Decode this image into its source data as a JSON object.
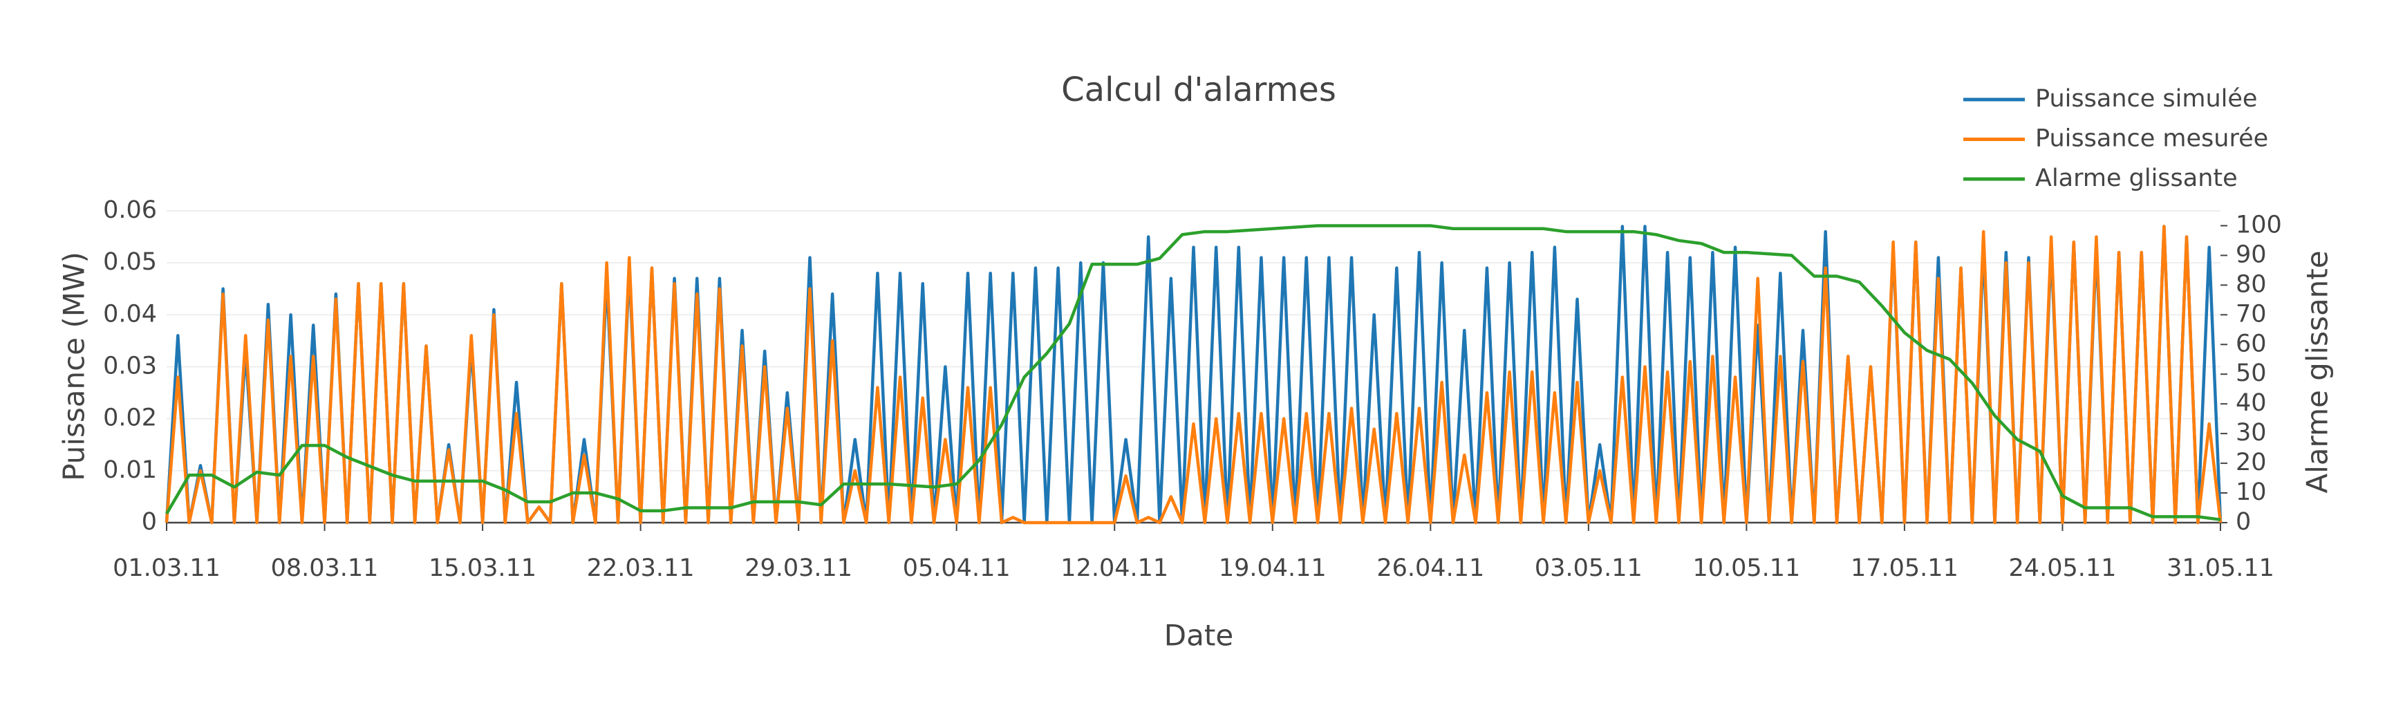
{
  "chart_data": {
    "type": "line",
    "title": "Calcul d'alarmes",
    "xlabel": "Date",
    "ylabel": "Puissance (MW)",
    "y2label": "Alarme glissante",
    "x": [
      0,
      0.5,
      1,
      1.5,
      2,
      2.5,
      3,
      3.5,
      4,
      4.5,
      5,
      5.5,
      6,
      6.5,
      7,
      7.5,
      8,
      8.5,
      9,
      9.5,
      10,
      10.5,
      11,
      11.5,
      12,
      12.5,
      13,
      13.5,
      14,
      14.5,
      15,
      15.5,
      16,
      16.5,
      17,
      17.5,
      18,
      18.5,
      19,
      19.5,
      20,
      20.5,
      21,
      21.5,
      22,
      22.5,
      23,
      23.5,
      24,
      24.5,
      25,
      25.5,
      26,
      26.5,
      27,
      27.5,
      28,
      28.5,
      29,
      29.5,
      30,
      30.5,
      31,
      31.5,
      32,
      32.5,
      33,
      33.5,
      34,
      34.5,
      35,
      35.5,
      36,
      36.5,
      37,
      37.5,
      38,
      38.5,
      39,
      39.5,
      40,
      40.5,
      41,
      41.5,
      42,
      42.5,
      43,
      43.5,
      44,
      44.5,
      45,
      45.5,
      46,
      46.5,
      47,
      47.5,
      48,
      48.5,
      49,
      49.5,
      50,
      50.5,
      51,
      51.5,
      52,
      52.5,
      53,
      53.5,
      54,
      54.5,
      55,
      55.5,
      56,
      56.5,
      57,
      57.5,
      58,
      58.5,
      59,
      59.5,
      60,
      60.5,
      61,
      61.5,
      62,
      62.5,
      63,
      63.5,
      64,
      64.5,
      65,
      65.5,
      66,
      66.5,
      67,
      67.5,
      68,
      68.5,
      69,
      69.5,
      70,
      70.5,
      71,
      71.5,
      72,
      72.5,
      73,
      73.5,
      74,
      74.5,
      75,
      75.5,
      76,
      76.5,
      77,
      77.5,
      78,
      78.5,
      79,
      79.5,
      80,
      80.5,
      81,
      81.5,
      82,
      82.5,
      83,
      83.5,
      84,
      84.5,
      85,
      85.5,
      86,
      86.5,
      87,
      87.5,
      88,
      88.5,
      89,
      89.5,
      90,
      90.5,
      91
    ],
    "xlim": [
      0,
      91
    ],
    "xticks": [
      {
        "value": 0,
        "label": "01.03.11"
      },
      {
        "value": 7,
        "label": "08.03.11"
      },
      {
        "value": 14,
        "label": "15.03.11"
      },
      {
        "value": 21,
        "label": "22.03.11"
      },
      {
        "value": 28,
        "label": "29.03.11"
      },
      {
        "value": 35,
        "label": "05.04.11"
      },
      {
        "value": 42,
        "label": "12.04.11"
      },
      {
        "value": 49,
        "label": "19.04.11"
      },
      {
        "value": 56,
        "label": "26.04.11"
      },
      {
        "value": 63,
        "label": "03.05.11"
      },
      {
        "value": 70,
        "label": "10.05.11"
      },
      {
        "value": 77,
        "label": "17.05.11"
      },
      {
        "value": 84,
        "label": "24.05.11"
      },
      {
        "value": 91,
        "label": "31.05.11"
      }
    ],
    "ylim": [
      0,
      0.06
    ],
    "yticks": [
      0,
      0.01,
      0.02,
      0.03,
      0.04,
      0.05,
      0.06
    ],
    "y2lim": [
      0,
      105
    ],
    "y2ticks": [
      0,
      10,
      20,
      30,
      40,
      50,
      60,
      70,
      80,
      90,
      100
    ],
    "grid": true,
    "legend": "top-right",
    "series": [
      {
        "name": "Puissance simulée",
        "color": "#1f77b4",
        "values": [
          0,
          0.036,
          0,
          0.011,
          0,
          0.045,
          0,
          0.033,
          0,
          0.042,
          0,
          0.04,
          0,
          0.038,
          0,
          0.044,
          0,
          0.046,
          0,
          0.046,
          0,
          0.046,
          0,
          0.034,
          0,
          0.015,
          0,
          0.034,
          0,
          0.041,
          0,
          0.027,
          0,
          0.003,
          0,
          0.046,
          0,
          0.016,
          0,
          0.047,
          0,
          0.049,
          0,
          0.049,
          0,
          0.047,
          0,
          0.047,
          0,
          0.047,
          0,
          0.037,
          0,
          0.033,
          0,
          0.025,
          0,
          0.051,
          0,
          0.044,
          0,
          0.016,
          0,
          0.048,
          0,
          0.048,
          0,
          0.046,
          0,
          0.03,
          0,
          0.048,
          0,
          0.048,
          0,
          0.048,
          0,
          0.049,
          0,
          0.049,
          0,
          0.05,
          0,
          0.05,
          0,
          0.016,
          0,
          0.055,
          0,
          0.047,
          0,
          0.053,
          0,
          0.053,
          0,
          0.053,
          0,
          0.051,
          0,
          0.051,
          0,
          0.051,
          0,
          0.051,
          0,
          0.051,
          0,
          0.04,
          0,
          0.049,
          0,
          0.052,
          0,
          0.05,
          0,
          0.037,
          0,
          0.049,
          0,
          0.05,
          0,
          0.052,
          0,
          0.053,
          0,
          0.043,
          0,
          0.015,
          0,
          0.057,
          0,
          0.057,
          0,
          0.052,
          0,
          0.051,
          0,
          0.052,
          0,
          0.053,
          0,
          0.038,
          0,
          0.048,
          0,
          0.037,
          0,
          0.056,
          0,
          0.032,
          0,
          0.03,
          0,
          0.053,
          0,
          0.054,
          0,
          0.051,
          0,
          0.049,
          0,
          0.053,
          0,
          0.052,
          0,
          0.051,
          0,
          0.053,
          0,
          0.054,
          0,
          0.053,
          0,
          0.052,
          0,
          0.052,
          0,
          0.057,
          0,
          0.055,
          0,
          0.053,
          0
        ]
      },
      {
        "name": "Puissance mesurée",
        "color": "#ff7f0e",
        "values": [
          0,
          0.028,
          0,
          0.01,
          0,
          0.044,
          0,
          0.036,
          0,
          0.039,
          0,
          0.032,
          0,
          0.032,
          0,
          0.043,
          0,
          0.046,
          0,
          0.046,
          0,
          0.046,
          0,
          0.034,
          0,
          0.014,
          0,
          0.036,
          0,
          0.04,
          0,
          0.021,
          0,
          0.003,
          0,
          0.046,
          0,
          0.013,
          0,
          0.05,
          0,
          0.051,
          0,
          0.049,
          0,
          0.046,
          0,
          0.044,
          0,
          0.045,
          0,
          0.034,
          0,
          0.03,
          0,
          0.022,
          0,
          0.045,
          0,
          0.035,
          0,
          0.01,
          0,
          0.026,
          0,
          0.028,
          0,
          0.024,
          0,
          0.016,
          0,
          0.026,
          0,
          0.026,
          0,
          0.001,
          0,
          0,
          0,
          0,
          0,
          0,
          0,
          0,
          0,
          0.009,
          0,
          0.001,
          0,
          0.005,
          0,
          0.019,
          0,
          0.02,
          0,
          0.021,
          0,
          0.021,
          0,
          0.02,
          0,
          0.021,
          0,
          0.021,
          0,
          0.022,
          0,
          0.018,
          0,
          0.021,
          0,
          0.022,
          0,
          0.027,
          0,
          0.013,
          0,
          0.025,
          0,
          0.029,
          0,
          0.029,
          0,
          0.025,
          0,
          0.027,
          0,
          0.01,
          0,
          0.028,
          0,
          0.03,
          0,
          0.029,
          0,
          0.031,
          0,
          0.032,
          0,
          0.028,
          0,
          0.047,
          0,
          0.032,
          0,
          0.031,
          0,
          0.049,
          0,
          0.032,
          0,
          0.03,
          0,
          0.054,
          0,
          0.054,
          0,
          0.047,
          0,
          0.049,
          0,
          0.056,
          0,
          0.05,
          0,
          0.05,
          0,
          0.055,
          0,
          0.054,
          0,
          0.055,
          0,
          0.052,
          0,
          0.052,
          0,
          0.057,
          0,
          0.055,
          0,
          0.019,
          0
        ]
      },
      {
        "name": "Alarme glissante",
        "color": "#2ca02c",
        "axis": "y2",
        "x": [
          0,
          1,
          2,
          3,
          4,
          5,
          6,
          7,
          8,
          9,
          10,
          11,
          13,
          14,
          15,
          16,
          17,
          18,
          19,
          20,
          21,
          22,
          23,
          25,
          26,
          28,
          29,
          30,
          32,
          34,
          35,
          36,
          37,
          38,
          39,
          40,
          41,
          42,
          43,
          44,
          45,
          46,
          47,
          49,
          51,
          56,
          57,
          61,
          62,
          63,
          65,
          66,
          67,
          68,
          69,
          70,
          72,
          73,
          74,
          75,
          76,
          77,
          78,
          79,
          80,
          81,
          82,
          83,
          84,
          85,
          87,
          88,
          90,
          91
        ],
        "values": [
          3,
          16,
          16,
          12,
          17,
          16,
          26,
          26,
          22,
          19,
          16,
          14,
          14,
          14,
          11,
          7,
          7,
          10,
          10,
          8,
          4,
          4,
          5,
          5,
          7,
          7,
          6,
          13,
          13,
          12,
          13,
          21,
          33,
          49,
          57,
          67,
          87,
          87,
          87,
          89,
          97,
          98,
          98,
          99,
          100,
          100,
          99,
          99,
          98,
          98,
          98,
          97,
          95,
          94,
          91,
          91,
          90,
          83,
          83,
          81,
          73,
          64,
          58,
          55,
          47,
          36,
          28,
          24,
          9,
          5,
          5,
          2,
          2,
          1
        ]
      }
    ]
  }
}
